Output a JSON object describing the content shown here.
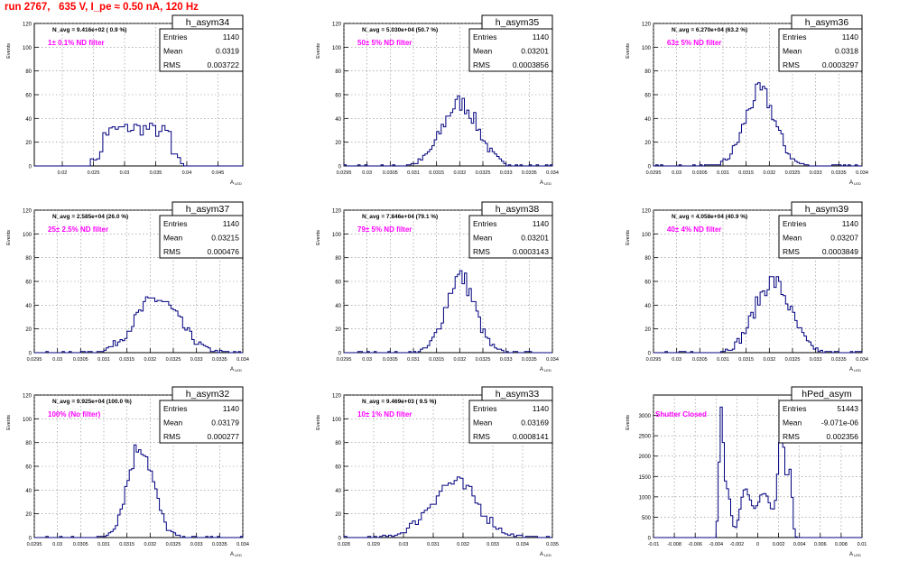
{
  "header": {
    "title": "run 2767,   635 V, I_pe ≈ 0.50 nA, 120 Hz"
  },
  "stats_labels": {
    "entries": "Entries",
    "mean": "Mean",
    "rms": "RMS"
  },
  "axis_labels": {
    "x": "A",
    "x_sub": "LED",
    "y": "Events"
  },
  "colors": {
    "histogram": "#00007f",
    "filter_text": "#ff00ff",
    "title": "#ff0000",
    "grid": "#888888"
  },
  "chart_data": [
    {
      "type": "bar",
      "name": "h_asym34",
      "navg": "N_avg = 9.416e+02 ( 0.9 %)",
      "filter": "1± 0.1% ND filter",
      "entries": "1140",
      "mean": "0.0319",
      "rms": "0.003722",
      "xlim": [
        0.0155,
        0.049
      ],
      "ylim": [
        0,
        120
      ],
      "xticks": [
        0.02,
        0.025,
        0.03,
        0.035,
        0.04,
        0.045
      ],
      "xtick_labels": [
        "0.02",
        "0.025",
        "0.03",
        "0.035",
        "0.04",
        "0.045"
      ],
      "yticks": [
        0,
        20,
        40,
        60,
        80,
        100,
        120
      ],
      "ytick_labels": [
        "0",
        "20",
        "40",
        "60",
        "80",
        "100",
        "120"
      ],
      "shape": {
        "kind": "flat",
        "center": 0.0319,
        "halfwidth": 0.0055,
        "peak": 32,
        "step": 0.0005
      }
    },
    {
      "type": "bar",
      "name": "h_asym35",
      "navg": "N_avg = 5.030e+04 (50.7 %)",
      "filter": "50± 5% ND filter",
      "entries": "1140",
      "mean": "0.03201",
      "rms": "0.0003856",
      "xlim": [
        0.0295,
        0.034
      ],
      "ylim": [
        0,
        120
      ],
      "xticks": [
        0.0295,
        0.03,
        0.0305,
        0.031,
        0.0315,
        0.032,
        0.0325,
        0.033,
        0.0335,
        0.034
      ],
      "xtick_labels": [
        "0.0295",
        "0.03",
        "0.0305",
        "0.031",
        "0.0315",
        "0.032",
        "0.0325",
        "0.033",
        "0.0335",
        "0.034"
      ],
      "yticks": [
        0,
        20,
        40,
        60,
        80,
        100,
        120
      ],
      "ytick_labels": [
        "0",
        "20",
        "40",
        "60",
        "80",
        "100",
        "120"
      ],
      "shape": {
        "kind": "gauss",
        "center": 0.03201,
        "sigma": 0.000386,
        "peak": 53,
        "step": 5e-05
      }
    },
    {
      "type": "bar",
      "name": "h_asym36",
      "navg": "N_avg = 6.270e+04 (63.2 %)",
      "filter": "63± 5% ND filter",
      "entries": "1140",
      "mean": "0.0318",
      "rms": "0.0003297",
      "xlim": [
        0.0295,
        0.034
      ],
      "ylim": [
        0,
        120
      ],
      "xticks": [
        0.0295,
        0.03,
        0.0305,
        0.031,
        0.0315,
        0.032,
        0.0325,
        0.033,
        0.0335,
        0.034
      ],
      "xtick_labels": [
        "0.0295",
        "0.03",
        "0.0305",
        "0.031",
        "0.0315",
        "0.032",
        "0.0325",
        "0.033",
        "0.0335",
        "0.034"
      ],
      "yticks": [
        0,
        20,
        40,
        60,
        80,
        100,
        120
      ],
      "ytick_labels": [
        "0",
        "20",
        "40",
        "60",
        "80",
        "100",
        "120"
      ],
      "shape": {
        "kind": "gauss",
        "center": 0.0318,
        "sigma": 0.00033,
        "peak": 62,
        "step": 5e-05
      }
    },
    {
      "type": "bar",
      "name": "h_asym37",
      "navg": "N_avg = 2.585e+04 (26.0 %)",
      "filter": "25± 2.5% ND filter",
      "entries": "1140",
      "mean": "0.03215",
      "rms": "0.000476",
      "xlim": [
        0.0295,
        0.034
      ],
      "ylim": [
        0,
        120
      ],
      "xticks": [
        0.0295,
        0.03,
        0.0305,
        0.031,
        0.0315,
        0.032,
        0.0325,
        0.033,
        0.0335,
        0.034
      ],
      "xtick_labels": [
        "0.0295",
        "0.03",
        "0.0305",
        "0.031",
        "0.0315",
        "0.032",
        "0.0325",
        "0.033",
        "0.0335",
        "0.034"
      ],
      "yticks": [
        0,
        20,
        40,
        60,
        80,
        100,
        120
      ],
      "ytick_labels": [
        "0",
        "20",
        "40",
        "60",
        "80",
        "100",
        "120"
      ],
      "shape": {
        "kind": "gauss",
        "center": 0.03215,
        "sigma": 0.000476,
        "peak": 45,
        "step": 5e-05
      }
    },
    {
      "type": "bar",
      "name": "h_asym38",
      "navg": "N_avg = 7.846e+04 (79.1 %)",
      "filter": "79± 5% ND filter",
      "entries": "1140",
      "mean": "0.03201",
      "rms": "0.0003143",
      "xlim": [
        0.0295,
        0.034
      ],
      "ylim": [
        0,
        120
      ],
      "xticks": [
        0.0295,
        0.03,
        0.0305,
        0.031,
        0.0315,
        0.032,
        0.0325,
        0.033,
        0.0335,
        0.034
      ],
      "xtick_labels": [
        "0.0295",
        "0.03",
        "0.0305",
        "0.031",
        "0.0315",
        "0.032",
        "0.0325",
        "0.033",
        "0.0335",
        "0.034"
      ],
      "yticks": [
        0,
        20,
        40,
        60,
        80,
        100,
        120
      ],
      "ytick_labels": [
        "0",
        "20",
        "40",
        "60",
        "80",
        "100",
        "120"
      ],
      "shape": {
        "kind": "gauss",
        "center": 0.03201,
        "sigma": 0.000314,
        "peak": 64,
        "step": 5e-05
      }
    },
    {
      "type": "bar",
      "name": "h_asym39",
      "navg": "N_avg = 4.058e+04 (40.9 %)",
      "filter": "40± 4% ND filter",
      "entries": "1140",
      "mean": "0.03207",
      "rms": "0.0003849",
      "xlim": [
        0.0295,
        0.034
      ],
      "ylim": [
        0,
        120
      ],
      "xticks": [
        0.0295,
        0.03,
        0.0305,
        0.031,
        0.0315,
        0.032,
        0.0325,
        0.033,
        0.0335,
        0.034
      ],
      "xtick_labels": [
        "0.0295",
        "0.03",
        "0.0305",
        "0.031",
        "0.0315",
        "0.032",
        "0.0325",
        "0.033",
        "0.0335",
        "0.034"
      ],
      "yticks": [
        0,
        20,
        40,
        60,
        80,
        100,
        120
      ],
      "ytick_labels": [
        "0",
        "20",
        "40",
        "60",
        "80",
        "100",
        "120"
      ],
      "shape": {
        "kind": "gauss",
        "center": 0.03207,
        "sigma": 0.000385,
        "peak": 60,
        "step": 5e-05
      }
    },
    {
      "type": "bar",
      "name": "h_asym32",
      "navg": "N_avg = 9.925e+04 (100.0 %)",
      "filter": "100% (No filter)",
      "entries": "1140",
      "mean": "0.03179",
      "rms": "0.000277",
      "xlim": [
        0.0295,
        0.034
      ],
      "ylim": [
        0,
        120
      ],
      "xticks": [
        0.0295,
        0.03,
        0.0305,
        0.031,
        0.0315,
        0.032,
        0.0325,
        0.033,
        0.0335,
        0.034
      ],
      "xtick_labels": [
        "0.0295",
        "0.03",
        "0.0305",
        "0.031",
        "0.0315",
        "0.032",
        "0.0325",
        "0.033",
        "0.0335",
        "0.034"
      ],
      "yticks": [
        0,
        20,
        40,
        60,
        80,
        100,
        120
      ],
      "ytick_labels": [
        "0",
        "20",
        "40",
        "60",
        "80",
        "100",
        "120"
      ],
      "shape": {
        "kind": "gauss",
        "center": 0.03179,
        "sigma": 0.000277,
        "peak": 78,
        "step": 5e-05
      }
    },
    {
      "type": "bar",
      "name": "h_asym33",
      "navg": "N_avg = 9.469e+03 ( 9.5 %)",
      "filter": "10± 1% ND filter",
      "entries": "1140",
      "mean": "0.03169",
      "rms": "0.0008141",
      "xlim": [
        0.028,
        0.035
      ],
      "ylim": [
        0,
        120
      ],
      "xticks": [
        0.028,
        0.029,
        0.03,
        0.031,
        0.032,
        0.033,
        0.034,
        0.035
      ],
      "xtick_labels": [
        "0.028",
        "0.029",
        "0.03",
        "0.031",
        "0.032",
        "0.033",
        "0.034",
        "0.035"
      ],
      "yticks": [
        0,
        20,
        40,
        60,
        80,
        100,
        120
      ],
      "ytick_labels": [
        "0",
        "20",
        "40",
        "60",
        "80",
        "100",
        "120"
      ],
      "shape": {
        "kind": "gauss",
        "center": 0.03169,
        "sigma": 0.000814,
        "peak": 46,
        "step": 0.0001
      }
    },
    {
      "type": "bar",
      "name": "hPed_asym",
      "navg": "",
      "filter": "Shutter Closed",
      "entries": "51443",
      "mean": "-9.071e-06",
      "rms": "0.002356",
      "xlim": [
        -0.01,
        0.01
      ],
      "ylim": [
        0,
        3500
      ],
      "xticks": [
        -0.01,
        -0.008,
        -0.006,
        -0.004,
        -0.002,
        0,
        0.002,
        0.004,
        0.006,
        0.008,
        0.01
      ],
      "xtick_labels": [
        "-0.01",
        "-0.008",
        "-0.006",
        "-0.004",
        "-0.002",
        "0",
        "0.002",
        "0.004",
        "0.006",
        "0.008",
        "0.01"
      ],
      "yticks": [
        0,
        500,
        1000,
        1500,
        2000,
        2500,
        3000
      ],
      "ytick_labels": [
        "0",
        "500",
        "1000",
        "1500",
        "2000",
        "2500",
        "3000"
      ],
      "shape": {
        "kind": "ped",
        "step": 0.0002
      }
    }
  ]
}
